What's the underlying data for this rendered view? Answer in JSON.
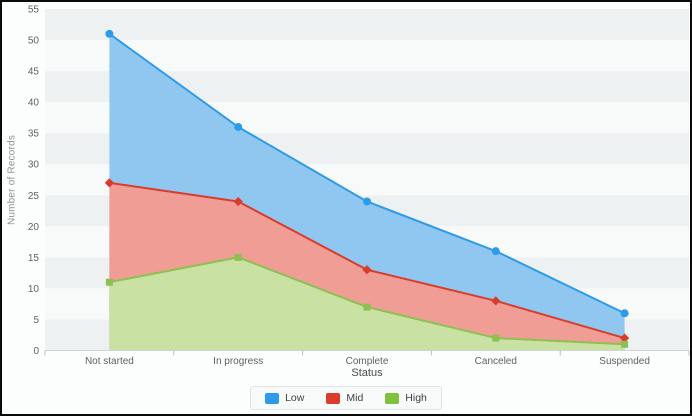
{
  "window": {
    "background": "#fcfdfd",
    "border_color": "#0a0a0a"
  },
  "chart": {
    "y_axis_title": "Number of Records",
    "x_axis_title": "Status",
    "y_ticks": [
      "0",
      "5",
      "10",
      "15",
      "20",
      "25",
      "30",
      "35",
      "40",
      "45",
      "50",
      "55"
    ],
    "band_color_dark": "#eef1f2",
    "band_color_light": "#f8fafa",
    "axis_line_color": "#ccd4d5",
    "tick_mark_color": "#b7bfbf",
    "tick_label_color": "#5c6363",
    "axis_title_color": "#474d4d",
    "y_title_color": "#8d9494"
  },
  "legend": {
    "background": "#f8fafa",
    "border_color": "#dfe5e6",
    "items": [
      {
        "label": "Low",
        "color": "#2d9be8"
      },
      {
        "label": "Mid",
        "color": "#da3b2b"
      },
      {
        "label": "High",
        "color": "#7fc13e"
      }
    ]
  },
  "chart_data": {
    "type": "area",
    "title": "",
    "xlabel": "Status",
    "ylabel": "Number of Records",
    "categories": [
      "Not started",
      "In progress",
      "Complete",
      "Canceled",
      "Suspended"
    ],
    "series": [
      {
        "name": "Low",
        "values": [
          51,
          36,
          24,
          16,
          6
        ],
        "line_color": "#2d9be8",
        "fill_color": "#90c7f0",
        "marker": "circle"
      },
      {
        "name": "Mid",
        "values": [
          27,
          24,
          13,
          8,
          2
        ],
        "line_color": "#da3b2b",
        "fill_color": "#f09d96",
        "marker": "diamond"
      },
      {
        "name": "High",
        "values": [
          11,
          15,
          7,
          2,
          1
        ],
        "line_color": "#8cc152",
        "fill_color": "#c9e2a4",
        "marker": "square"
      }
    ],
    "ylim": [
      0,
      55
    ],
    "y_step": 5,
    "grid": "banded-rows",
    "legend_position": "bottom",
    "areas_overlap": true
  }
}
